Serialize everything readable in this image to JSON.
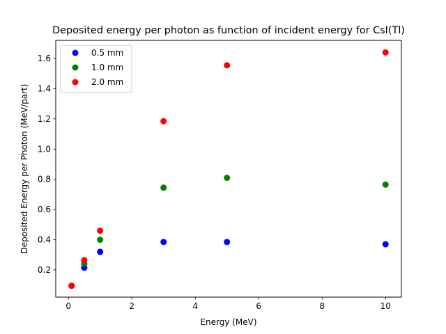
{
  "chart_data": {
    "type": "scatter",
    "title": "Deposited energy per photon as function of incident energy for CsI(Tl)",
    "xlabel": "Energy (MeV)",
    "ylabel": "Deposited Energy per Photon (MeV/part)",
    "xlim": [
      -0.4,
      10.5
    ],
    "ylim": [
      0.02,
      1.72
    ],
    "xticks": [
      0,
      2,
      4,
      6,
      8,
      10
    ],
    "yticks": [
      0.2,
      0.4,
      0.6,
      0.8,
      1.0,
      1.2,
      1.4,
      1.6
    ],
    "xtick_labels": [
      "0",
      "2",
      "4",
      "6",
      "8",
      "10"
    ],
    "ytick_labels": [
      "0.2",
      "0.4",
      "0.6",
      "0.8",
      "1.0",
      "1.2",
      "1.4",
      "1.6"
    ],
    "grid": false,
    "legend_position": "top-left",
    "series": [
      {
        "name": "0.5 mm",
        "color": "#0000ff",
        "x": [
          0.1,
          0.5,
          1.0,
          3.0,
          5.0,
          10.0
        ],
        "y": [
          0.095,
          0.215,
          0.32,
          0.385,
          0.385,
          0.37
        ]
      },
      {
        "name": "1.0 mm",
        "color": "#008000",
        "x": [
          0.1,
          0.5,
          1.0,
          3.0,
          5.0,
          10.0
        ],
        "y": [
          0.095,
          0.24,
          0.4,
          0.745,
          0.81,
          0.765
        ]
      },
      {
        "name": "2.0 mm",
        "color": "#ff0000",
        "x": [
          0.1,
          0.5,
          1.0,
          3.0,
          5.0,
          10.0
        ],
        "y": [
          0.095,
          0.265,
          0.46,
          1.185,
          1.555,
          1.64
        ]
      }
    ]
  }
}
